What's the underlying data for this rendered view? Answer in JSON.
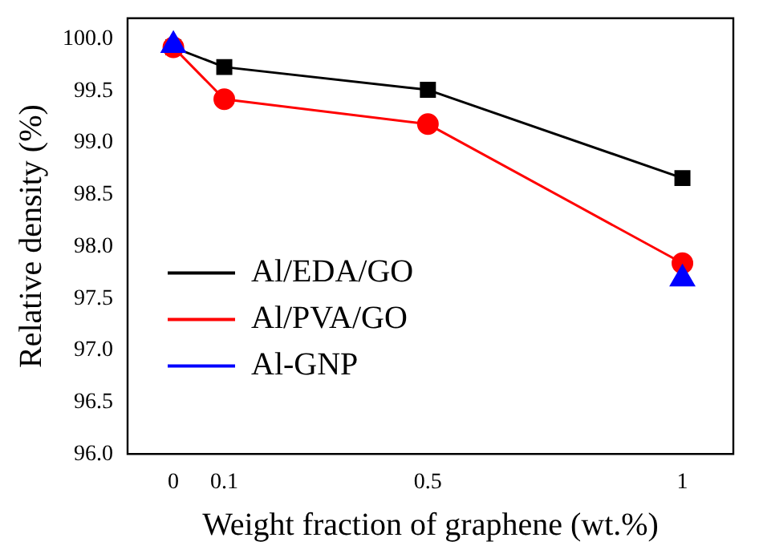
{
  "chart_data": {
    "type": "line",
    "xlabel": "Weight fraction of graphene (wt.%)",
    "ylabel": "Relative density (%)",
    "xlim": [
      -0.09,
      1.1
    ],
    "xticks": [
      0,
      0.1,
      0.5,
      1
    ],
    "ylim": [
      96.0,
      100.2
    ],
    "yticks": [
      {
        "value": 96,
        "label": "96.0"
      },
      {
        "value": 96.5,
        "label": "96.5"
      },
      {
        "value": 97,
        "label": "97.0"
      },
      {
        "value": 97.5,
        "label": "97.5"
      },
      {
        "value": 98,
        "label": "98.0"
      },
      {
        "value": 98.5,
        "label": "98.5"
      },
      {
        "value": 99,
        "label": "99.0"
      },
      {
        "value": 99.5,
        "label": "99.5"
      },
      {
        "value": 100,
        "label": "100.0"
      }
    ],
    "grid": false,
    "legend": "bottom left",
    "series": [
      {
        "name": "Al/EDA/GO",
        "color": "#000000",
        "marker": "square",
        "x": [
          0,
          0.1,
          0.5,
          1
        ],
        "values": [
          99.92,
          99.73,
          99.51,
          98.66
        ]
      },
      {
        "name": "Al/PVA/GO",
        "color": "#ff0000",
        "marker": "circle",
        "x": [
          0,
          0.1,
          0.5,
          1
        ],
        "values": [
          99.92,
          99.42,
          99.18,
          97.84
        ]
      },
      {
        "name": "Al-GNP",
        "color": "#0000ff",
        "marker": "triangle",
        "type": "scatter",
        "x": [
          0,
          1
        ],
        "values": [
          99.94,
          97.69
        ]
      }
    ]
  }
}
